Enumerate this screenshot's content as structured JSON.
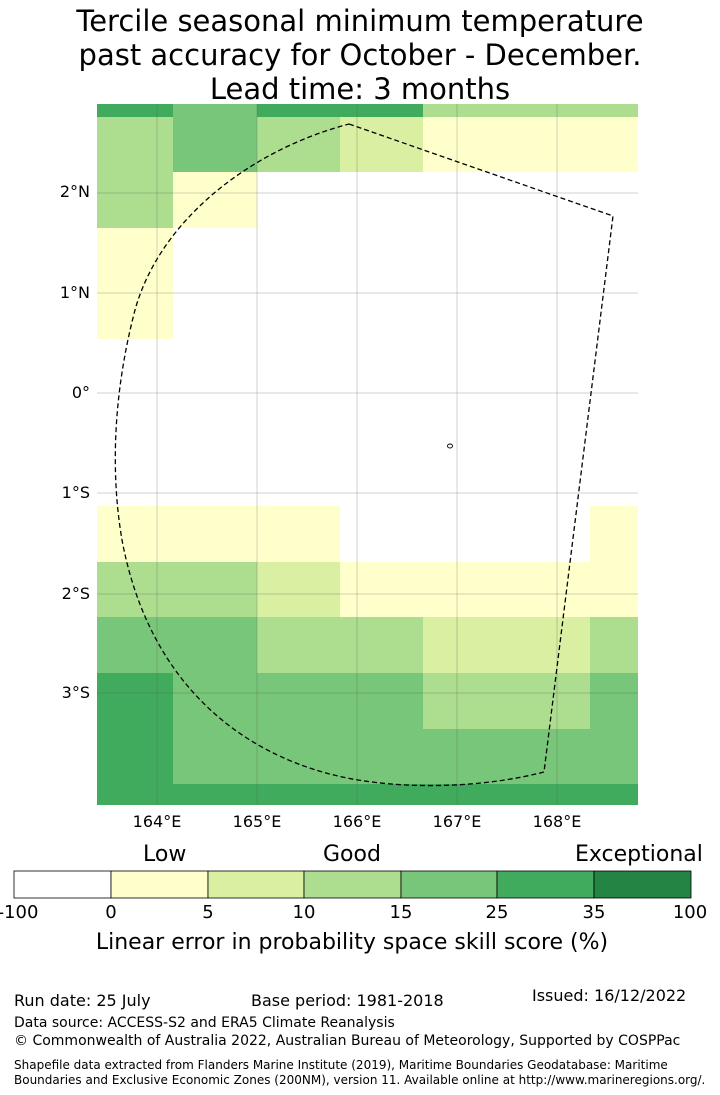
{
  "title": {
    "line1": "Tercile seasonal minimum temperature",
    "line2": "past accuracy for October - December.",
    "line3": "Lead time: 3 months"
  },
  "map": {
    "lat_labels": [
      "2°N",
      "1°N",
      "0°",
      "1°S",
      "2°S",
      "3°S"
    ],
    "lon_labels": [
      "164°E",
      "165°E",
      "166°E",
      "167°E",
      "168°E"
    ],
    "colors": {
      "c0": "#ffffff",
      "c1": "#ffffcc",
      "c2": "#d9f0a3",
      "c3": "#addd8e",
      "c4": "#78c679",
      "c5": "#41ab5d",
      "c6": "#238443"
    }
  },
  "colorbar": {
    "categories": {
      "low": "Low",
      "good": "Good",
      "exceptional": "Exceptional"
    },
    "ticks": [
      "-100",
      "0",
      "5",
      "10",
      "15",
      "25",
      "35",
      "100"
    ],
    "label": "Linear error in probability space skill score (%)"
  },
  "footer": {
    "run_date": "Run date: 25 July",
    "base_period": "Base period: 1981-2018",
    "issued": "Issued: 16/12/2022",
    "data_source": "Data source: ACCESS-S2 and ERA5 Climate Reanalysis",
    "copyright": "© Commonwealth of Australia 2022, Australian Bureau of Meteorology, Supported by COSPPac",
    "shapefile_line1": "Shapefile data extracted from Flanders Marine Institute (2019), Maritime Boundaries Geodatabase: Maritime",
    "shapefile_line2": "Boundaries and Exclusive Economic Zones (200NM), version 11. Available online at http://www.marineregions.org/."
  }
}
